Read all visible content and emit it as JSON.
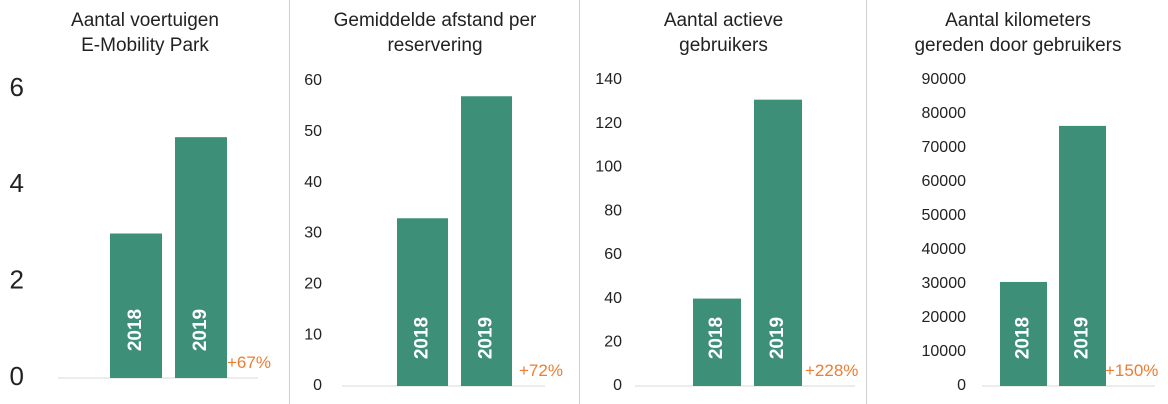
{
  "colors": {
    "bar": "#3d8f78",
    "growth": "#ed7d31",
    "axis": "#d9d9d9",
    "tick": "#222222",
    "bar_label": "#ffffff"
  },
  "chart_data": [
    {
      "type": "bar",
      "title": "Aantal voertuigen\nE-Mobility Park",
      "categories": [
        "2018",
        "2019"
      ],
      "values": [
        3,
        5
      ],
      "ylim": [
        0,
        6
      ],
      "yticks": [
        "0",
        "2",
        "4",
        "6"
      ],
      "growth_label": "+67%",
      "grid": false
    },
    {
      "type": "bar",
      "title": "Gemiddelde afstand per\nreservering",
      "categories": [
        "2018",
        "2019"
      ],
      "values": [
        33,
        57
      ],
      "ylim": [
        0,
        60
      ],
      "yticks": [
        "0",
        "10",
        "20",
        "30",
        "40",
        "50",
        "60"
      ],
      "growth_label": "+72%",
      "grid": false
    },
    {
      "type": "bar",
      "title": "Aantal actieve\ngebruikers",
      "categories": [
        "2018",
        "2019"
      ],
      "values": [
        40,
        131
      ],
      "ylim": [
        0,
        140
      ],
      "yticks": [
        "0",
        "20",
        "40",
        "60",
        "80",
        "100",
        "120",
        "140"
      ],
      "growth_label": "+228%",
      "grid": false
    },
    {
      "type": "bar",
      "title": "Aantal kilometers\ngereden door gebruikers",
      "categories": [
        "2018",
        "2019"
      ],
      "values": [
        30600,
        76500
      ],
      "ylim": [
        0,
        90000
      ],
      "yticks": [
        "0",
        "10000",
        "20000",
        "30000",
        "40000",
        "50000",
        "60000",
        "70000",
        "80000",
        "90000"
      ],
      "growth_label": "+150%",
      "grid": false
    }
  ]
}
